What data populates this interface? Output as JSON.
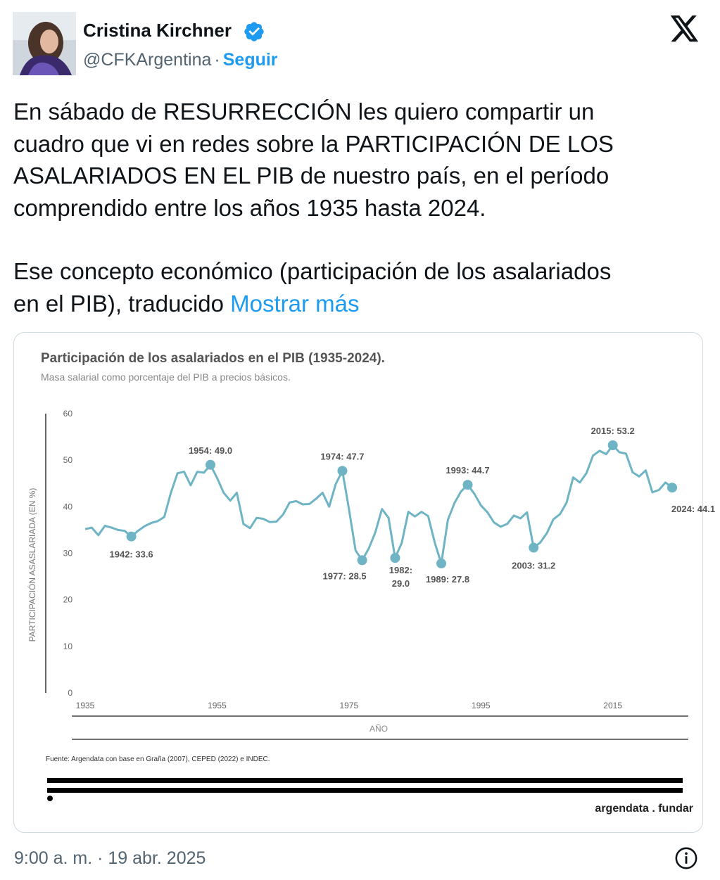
{
  "author": {
    "name": "Cristina Kirchner",
    "handle": "@CFKArgentina",
    "separator": "·",
    "follow_label": "Seguir"
  },
  "icons": {
    "verified": "verified-badge-icon",
    "brand": "x-logo-icon",
    "info": "info-icon"
  },
  "tweet": {
    "lines": [
      "En sábado de RESURRECCIÓN les quiero compartir un",
      "cuadro que vi en redes sobre la PARTICIPACIÓN DE LOS",
      "ASALARIADOS EN EL PIB de nuestro país, en el período",
      "comprendido entre los años 1935 hasta 2024.",
      "Ese concepto económico (participación de los asalariados",
      "en el PIB), traducido"
    ],
    "show_more": "Mostrar más",
    "timestamp": "9:00 a. m. · 19 abr. 2025"
  },
  "colors": {
    "accent": "#1d9bf0",
    "secondary_text": "#536471",
    "line": "#6fb4c4",
    "marker": "#6fb4c4"
  },
  "chart_data": {
    "type": "line",
    "title": "Participación de los asalariados en el PIB (1935-2024).",
    "subtitle": "Masa salarial como porcentaje del PIB a precios básicos.",
    "ylabel": "PARTICIPACIÓN ASASLARIADA (EN %)",
    "xlabel": "AÑO",
    "ylim": [
      0,
      60
    ],
    "xlim": [
      1935,
      2024
    ],
    "y_ticks": [
      0,
      10,
      20,
      30,
      40,
      50,
      60
    ],
    "x_ticks": [
      1935,
      1955,
      1975,
      1995,
      2015
    ],
    "grid": false,
    "source": "Fuente: Argendata con base en Graña (2007), CEPED (2022) e INDEC.",
    "brand": "argendata . fundar",
    "series": [
      {
        "x": [
          1935,
          1936,
          1937,
          1938,
          1939,
          1940,
          1941,
          1942,
          1943,
          1944,
          1945,
          1946,
          1947,
          1948,
          1949,
          1950,
          1951,
          1952,
          1953,
          1954,
          1955,
          1956,
          1957,
          1958,
          1959,
          1960,
          1961,
          1962,
          1963,
          1964,
          1965,
          1966,
          1967,
          1968,
          1969,
          1970,
          1971,
          1972,
          1973,
          1974,
          1975,
          1976,
          1977,
          1978,
          1979,
          1980,
          1981,
          1982,
          1983,
          1984,
          1985,
          1986,
          1987,
          1988,
          1989,
          1990,
          1991,
          1992,
          1993,
          1994,
          1995,
          1996,
          1997,
          1998,
          1999,
          2000,
          2001,
          2002,
          2003,
          2004,
          2005,
          2006,
          2007,
          2008,
          2009,
          2010,
          2011,
          2012,
          2013,
          2014,
          2015,
          2016,
          2017,
          2018,
          2019,
          2020,
          2021,
          2022,
          2023,
          2024
        ],
        "values": [
          35.2,
          35.5,
          33.9,
          35.9,
          35.5,
          35.0,
          34.8,
          33.6,
          34.8,
          35.8,
          36.5,
          36.9,
          37.8,
          43.0,
          47.2,
          47.5,
          44.6,
          47.5,
          47.3,
          49.0,
          46.2,
          43.0,
          41.3,
          43.0,
          36.3,
          35.4,
          37.6,
          37.4,
          36.7,
          36.8,
          38.3,
          40.9,
          41.2,
          40.5,
          40.6,
          41.7,
          43.0,
          40.0,
          44.9,
          47.7,
          39.5,
          30.6,
          28.5,
          31.0,
          34.5,
          39.5,
          37.6,
          29.0,
          32.2,
          38.9,
          37.9,
          38.9,
          38.0,
          32.3,
          27.8,
          37.2,
          40.8,
          43.3,
          44.7,
          42.8,
          40.3,
          38.8,
          36.6,
          35.7,
          36.3,
          38.1,
          37.5,
          38.8,
          31.2,
          32.3,
          34.3,
          37.3,
          38.4,
          40.9,
          46.3,
          45.2,
          47.2,
          51.0,
          52.0,
          51.3,
          53.2,
          51.7,
          51.4,
          47.4,
          46.5,
          47.8,
          43.1,
          43.6,
          45.2,
          44.1
        ]
      }
    ],
    "annotations": [
      {
        "x": 1942,
        "y": 33.6,
        "label": "1942: 33.6"
      },
      {
        "x": 1954,
        "y": 49.0,
        "label": "1954: 49.0"
      },
      {
        "x": 1974,
        "y": 47.7,
        "label": "1974: 47.7"
      },
      {
        "x": 1977,
        "y": 28.5,
        "label": "1977: 28.5"
      },
      {
        "x": 1982,
        "y": 29.0,
        "label": "1982:",
        "label2": "29.0"
      },
      {
        "x": 1989,
        "y": 27.8,
        "label": "1989: 27.8"
      },
      {
        "x": 1993,
        "y": 44.7,
        "label": "1993: 44.7"
      },
      {
        "x": 2003,
        "y": 31.2,
        "label": "2003: 31.2"
      },
      {
        "x": 2015,
        "y": 53.2,
        "label": "2015: 53.2"
      },
      {
        "x": 2024,
        "y": 44.1,
        "label": "2024: 44.1"
      }
    ]
  }
}
